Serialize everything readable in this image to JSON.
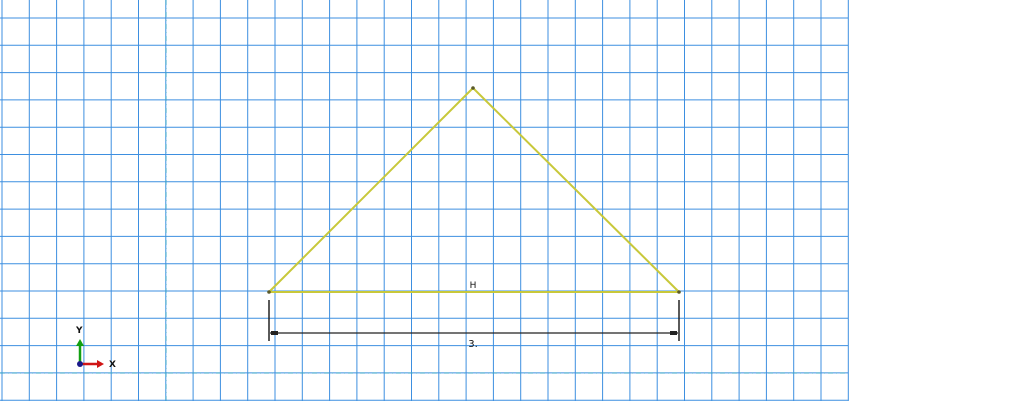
{
  "colors": {
    "background": "#ffffff",
    "grid_line": "#3d8fe0",
    "axis_dashed": "#3aa6c8",
    "geometry": "#c8c83a",
    "vertex": "#5a5a2a",
    "dimension": "#222222",
    "triad_x": "#d01515",
    "triad_y": "#12a012",
    "triad_origin": "#1a1a8a",
    "label_text": "#111111"
  },
  "sketch": {
    "constraint_label": "H",
    "dimension_value": "3.",
    "grid_visible": true
  },
  "triad": {
    "x_label": "X",
    "y_label": "Y"
  },
  "icons": {
    "triad": "xy-axis-triad-icon"
  }
}
